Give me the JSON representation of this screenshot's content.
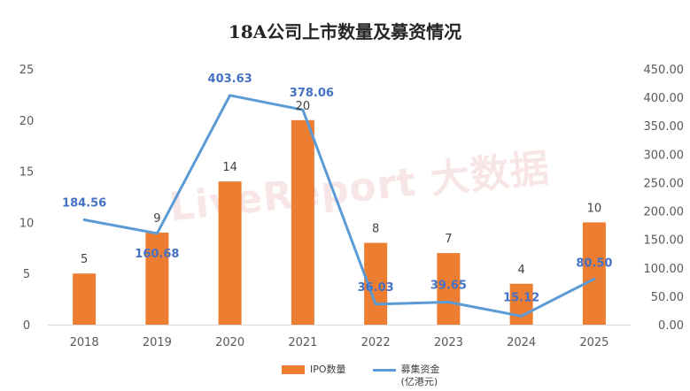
{
  "chart_data": {
    "type": "bar+line",
    "title": "18A公司上市数量及募资情况",
    "categories": [
      "2018",
      "2019",
      "2020",
      "2021",
      "2022",
      "2023",
      "2024",
      "2025"
    ],
    "series": [
      {
        "name": "IPO数量",
        "type": "bar",
        "axis": "left",
        "color": "#ed7d31",
        "values": [
          5,
          9,
          14,
          20,
          8,
          7,
          4,
          10
        ],
        "labels": [
          "5",
          "9",
          "14",
          "20",
          "8",
          "7",
          "4",
          "10"
        ]
      },
      {
        "name": "募集资金",
        "name_sub": "(亿港元)",
        "type": "line",
        "axis": "right",
        "color": "#5b9bd5",
        "values": [
          184.56,
          160.68,
          403.63,
          378.06,
          36.03,
          39.65,
          15.12,
          80.5
        ],
        "labels": [
          "184.56",
          "160.68",
          "403.63",
          "378.06",
          "36.03",
          "39.65",
          "15.12",
          "80.50"
        ]
      }
    ],
    "y_left": {
      "min": 0,
      "max": 25,
      "ticks": [
        "0",
        "5",
        "10",
        "15",
        "20",
        "25"
      ]
    },
    "y_right": {
      "min": 0,
      "max": 450,
      "ticks": [
        "0.00",
        "50.00",
        "100.00",
        "150.00",
        "200.00",
        "250.00",
        "300.00",
        "350.00",
        "400.00",
        "450.00"
      ]
    },
    "legend_position": "bottom",
    "grid": false
  },
  "watermark": {
    "text": "LiveReport 大数据"
  }
}
